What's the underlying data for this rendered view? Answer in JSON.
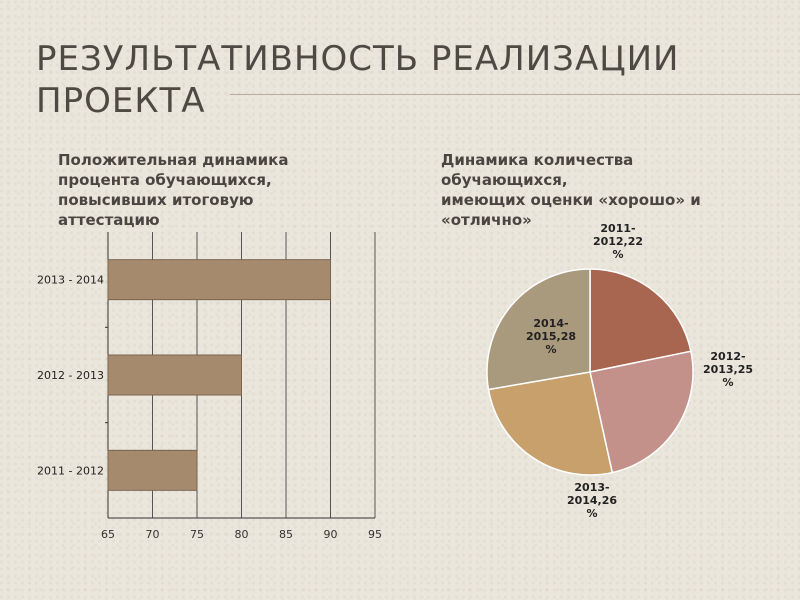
{
  "slide": {
    "title": "РЕЗУЛЬТАТИВНОСТЬ РЕАЛИЗАЦИИ ПРОЕКТА",
    "left_caption": "Положительная динамика\nпроцента обучающихся,\nповысивших итоговую\nаттестацию",
    "right_caption": "Динамика количества\nобучающихся,\nимеющих оценки «хорошо» и\n«отлично»"
  },
  "colors": {
    "bar": "#a68a6d",
    "bar_border": "#7a6450",
    "grid": "#555555",
    "pie": [
      "#a86550",
      "#c39189",
      "#c8a06c",
      "#aa9a7d"
    ]
  },
  "chart_data": [
    {
      "type": "bar",
      "orientation": "horizontal",
      "categories": [
        "2011 - 2012",
        "2012 - 2013",
        "2013 - 2014"
      ],
      "values": [
        75,
        80,
        90
      ],
      "xlim": [
        65,
        95
      ],
      "xticks": [
        "65",
        "70",
        "75",
        "80",
        "85",
        "90",
        "95"
      ],
      "grid": true
    },
    {
      "type": "pie",
      "slices": [
        {
          "label_lines": [
            "2011-",
            "2012,22",
            "%"
          ],
          "value": 22
        },
        {
          "label_lines": [
            "2012-",
            "2013,25",
            "%"
          ],
          "value": 25
        },
        {
          "label_lines": [
            "2013-",
            "2014,26",
            "%"
          ],
          "value": 26
        },
        {
          "label_lines": [
            "2014-",
            "2015,28",
            "%"
          ],
          "value": 28
        }
      ]
    }
  ]
}
